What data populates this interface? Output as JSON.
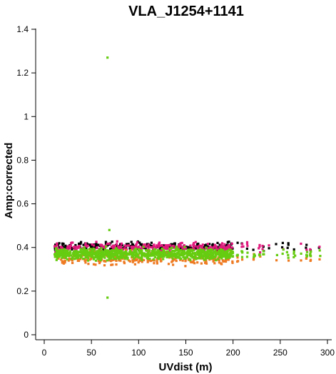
{
  "chart_data": {
    "type": "scatter",
    "title": "VLA_J1254+1141",
    "xlabel": "UVdist (m)",
    "ylabel": "Amp:corrected",
    "xlim": [
      0,
      300
    ],
    "ylim": [
      0,
      1.4
    ],
    "xticks": [
      "0",
      "50",
      "100",
      "150",
      "200",
      "250",
      "300"
    ],
    "yticks": [
      "0",
      "0.2",
      "0.4",
      "0.6",
      "0.8",
      "1",
      "1.2",
      "1.4"
    ],
    "grid": false,
    "legend": "none",
    "series_colors": [
      "#000000",
      "#e0197d",
      "#ee7a22",
      "#66cc11"
    ],
    "point_groups": [
      {
        "x_range": [
          11,
          200
        ],
        "y_center": 0.37,
        "y_spread": 0.04,
        "density": "high"
      },
      {
        "x_range": [
          200,
          295
        ],
        "y_center": 0.37,
        "y_spread": 0.04,
        "density": "low"
      }
    ],
    "outliers": [
      {
        "x": 67,
        "y": 1.27
      },
      {
        "x": 67,
        "y": 0.17
      },
      {
        "x": 69,
        "y": 0.48
      }
    ]
  }
}
